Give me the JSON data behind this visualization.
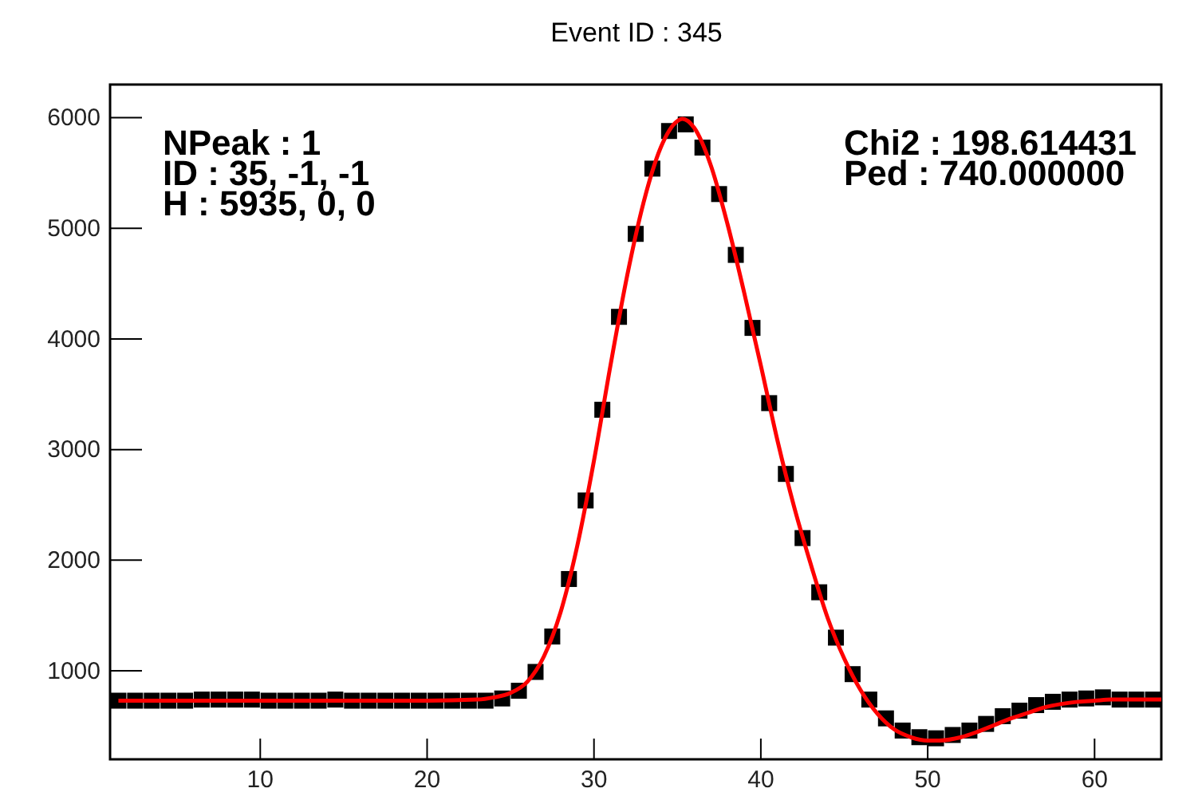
{
  "chart_data": {
    "type": "scatter",
    "title": "Event ID : 345",
    "annotations": [
      "NPeak : 1",
      "ID : 35, -1, -1",
      "H : 5935, 0, 0",
      "Chi2 : 198.614431",
      "Ped : 740.000000"
    ],
    "x": [
      1.5,
      2.5,
      3.5,
      4.5,
      5.5,
      6.5,
      7.5,
      8.5,
      9.5,
      10.5,
      11.5,
      12.5,
      13.5,
      14.5,
      15.5,
      16.5,
      17.5,
      18.5,
      19.5,
      20.5,
      21.5,
      22.5,
      23.5,
      24.5,
      25.5,
      26.5,
      27.5,
      28.5,
      29.5,
      30.5,
      31.5,
      32.5,
      33.5,
      34.5,
      35.5,
      36.5,
      37.5,
      38.5,
      39.5,
      40.5,
      41.5,
      42.5,
      43.5,
      44.5,
      45.5,
      46.5,
      47.5,
      48.5,
      49.5,
      50.5,
      51.5,
      52.5,
      53.5,
      54.5,
      55.5,
      56.5,
      57.5,
      58.5,
      59.5,
      60.5,
      61.5,
      62.5,
      63.5
    ],
    "series": [
      {
        "color": "#000000",
        "marker": "square",
        "values": [
          730,
          730,
          730,
          730,
          730,
          740,
          740,
          740,
          740,
          730,
          730,
          730,
          730,
          740,
          730,
          730,
          730,
          730,
          730,
          730,
          730,
          730,
          730,
          750,
          820,
          990,
          1310,
          1830,
          2540,
          3360,
          4200,
          4950,
          5540,
          5880,
          5940,
          5730,
          5310,
          4760,
          4100,
          3420,
          2780,
          2200,
          1710,
          1300,
          970,
          740,
          570,
          460,
          400,
          390,
          420,
          460,
          520,
          590,
          640,
          690,
          720,
          740,
          750,
          760,
          740,
          740,
          740
        ]
      },
      {
        "type": "line",
        "color": "#ff0000",
        "line_style": "solid",
        "marker": "none",
        "x": [
          1.5,
          5,
          10,
          15,
          20,
          23,
          24,
          25,
          26,
          27,
          28,
          29,
          30,
          31,
          32,
          33,
          34,
          35,
          35.3,
          36,
          37,
          38,
          39,
          40,
          41,
          42,
          43,
          44,
          45,
          46,
          47,
          48,
          49,
          50,
          50.7,
          52,
          53,
          54,
          55,
          56,
          57,
          58,
          59,
          60,
          61,
          62,
          63,
          64
        ],
        "values": [
          730,
          730,
          730,
          730,
          730,
          740,
          760,
          800,
          900,
          1130,
          1530,
          2130,
          2900,
          3770,
          4580,
          5250,
          5730,
          5970,
          5990,
          5910,
          5570,
          5040,
          4420,
          3760,
          3080,
          2480,
          1960,
          1480,
          1110,
          820,
          610,
          470,
          400,
          370,
          370,
          400,
          450,
          510,
          570,
          620,
          670,
          700,
          720,
          730,
          740,
          740,
          740,
          740
        ]
      }
    ],
    "xlim": [
      1,
      64
    ],
    "xticks": [
      10,
      20,
      30,
      40,
      50,
      60
    ],
    "ylim": [
      200,
      6300
    ],
    "yticks": [
      1000,
      2000,
      3000,
      4000,
      5000,
      6000
    ],
    "grid": false
  }
}
